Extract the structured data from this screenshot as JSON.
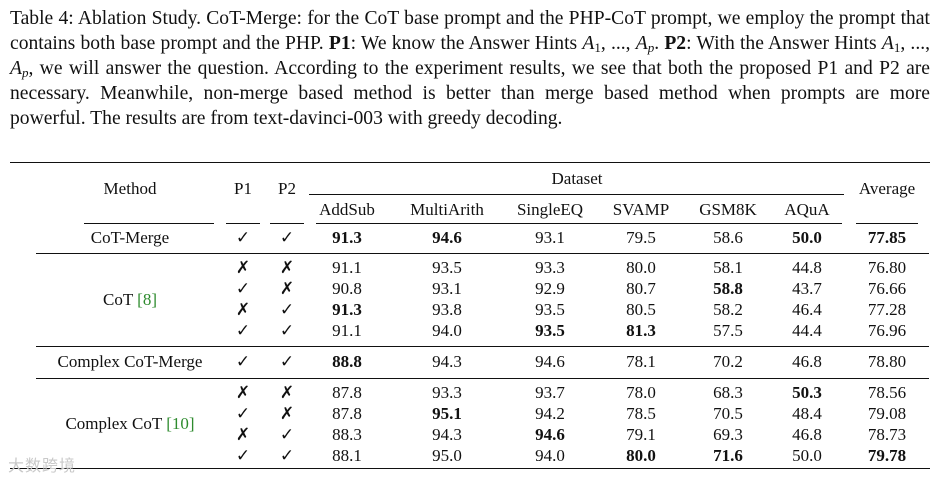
{
  "caption": {
    "s1": "Table 4: Ablation Study. CoT-Merge: for the CoT base prompt and the PHP-CoT prompt, we employ the prompt that contains both base prompt and the PHP. ",
    "p1": "P1",
    "s2": ": We know the Answer Hints ",
    "hint_a": "A",
    "hint_s1": "1",
    "hint_mid": ", ..., ",
    "hint_a2": "A",
    "hint_sp": "p",
    "s3": ". ",
    "p2": "P2",
    "s4": ": With the Answer Hints ",
    "s5": ", we will answer the question. According to the experiment results, we see that both the proposed P1 and P2 are necessary. Meanwhile, non-merge based method is better than merge based method when prompts are more powerful. The results are from text-davinci-003 with greedy decoding."
  },
  "header": {
    "method": "Method",
    "p1": "P1",
    "p2": "P2",
    "dataset": "Dataset",
    "average": "Average",
    "datasets": [
      "AddSub",
      "MultiArith",
      "SingleEQ",
      "SVAMP",
      "GSM8K",
      "AQuA"
    ]
  },
  "groups": [
    {
      "method": "CoT-Merge",
      "cite": "",
      "rows": [
        {
          "p1": "✓",
          "p2": "✓",
          "vals": [
            "91.3",
            "94.6",
            "93.1",
            "79.5",
            "58.6",
            "50.0",
            "77.85"
          ],
          "bold": [
            true,
            true,
            false,
            false,
            false,
            true,
            true
          ]
        }
      ]
    },
    {
      "method": "CoT ",
      "cite": "[8]",
      "rows": [
        {
          "p1": "✗",
          "p2": "✗",
          "vals": [
            "91.1",
            "93.5",
            "93.3",
            "80.0",
            "58.1",
            "44.8",
            "76.80"
          ],
          "bold": [
            false,
            false,
            false,
            false,
            false,
            false,
            false
          ]
        },
        {
          "p1": "✓",
          "p2": "✗",
          "vals": [
            "90.8",
            "93.1",
            "92.9",
            "80.7",
            "58.8",
            "43.7",
            "76.66"
          ],
          "bold": [
            false,
            false,
            false,
            false,
            true,
            false,
            false
          ]
        },
        {
          "p1": "✗",
          "p2": "✓",
          "vals": [
            "91.3",
            "93.8",
            "93.5",
            "80.5",
            "58.2",
            "46.4",
            "77.28"
          ],
          "bold": [
            true,
            false,
            false,
            false,
            false,
            false,
            false
          ]
        },
        {
          "p1": "✓",
          "p2": "✓",
          "vals": [
            "91.1",
            "94.0",
            "93.5",
            "81.3",
            "57.5",
            "44.4",
            "76.96"
          ],
          "bold": [
            false,
            false,
            true,
            true,
            false,
            false,
            false
          ]
        }
      ]
    },
    {
      "method": "Complex CoT-Merge",
      "cite": "",
      "rows": [
        {
          "p1": "✓",
          "p2": "✓",
          "vals": [
            "88.8",
            "94.3",
            "94.6",
            "78.1",
            "70.2",
            "46.8",
            "78.80"
          ],
          "bold": [
            true,
            false,
            false,
            false,
            false,
            false,
            false
          ]
        }
      ]
    },
    {
      "method": "Complex CoT ",
      "cite": "[10]",
      "rows": [
        {
          "p1": "✗",
          "p2": "✗",
          "vals": [
            "87.8",
            "93.3",
            "93.7",
            "78.0",
            "68.3",
            "50.3",
            "78.56"
          ],
          "bold": [
            false,
            false,
            false,
            false,
            false,
            true,
            false
          ]
        },
        {
          "p1": "✓",
          "p2": "✗",
          "vals": [
            "87.8",
            "95.1",
            "94.2",
            "78.5",
            "70.5",
            "48.4",
            "79.08"
          ],
          "bold": [
            false,
            true,
            false,
            false,
            false,
            false,
            false
          ]
        },
        {
          "p1": "✗",
          "p2": "✓",
          "vals": [
            "88.3",
            "94.3",
            "94.6",
            "79.1",
            "69.3",
            "46.8",
            "78.73"
          ],
          "bold": [
            false,
            false,
            true,
            false,
            false,
            false,
            false
          ]
        },
        {
          "p1": "✓",
          "p2": "✓",
          "vals": [
            "88.1",
            "95.0",
            "94.0",
            "80.0",
            "71.6",
            "50.0",
            "79.78"
          ],
          "bold": [
            false,
            false,
            false,
            true,
            true,
            false,
            true
          ]
        }
      ]
    }
  ],
  "watermark": "大数跨境"
}
